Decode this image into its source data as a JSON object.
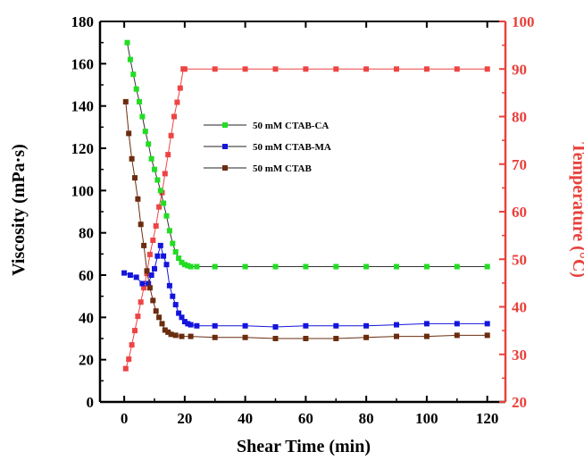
{
  "chart_data": {
    "type": "line",
    "xlabel": "Shear Time (min)",
    "ylabel": "Viscosity (mPa·s)",
    "y2label": "Temperature (°C)",
    "xlim": [
      -8,
      126
    ],
    "ylim": [
      0,
      180
    ],
    "y2lim": [
      20,
      100
    ],
    "xticks": [
      0,
      20,
      40,
      60,
      80,
      100,
      120
    ],
    "yticks": [
      0,
      20,
      40,
      60,
      80,
      100,
      120,
      140,
      160,
      180
    ],
    "y2ticks": [
      20,
      30,
      40,
      50,
      60,
      70,
      80,
      90,
      100
    ],
    "grid": false,
    "legend_position": "upper-center",
    "colors": {
      "right_axis": "#e8403a",
      "ca": "#22dd22",
      "ma": "#1414dc",
      "ctab": "#6b2c0f",
      "temp": "#ee4444"
    },
    "series": [
      {
        "name": "50 mM CTAB-CA",
        "axis": "left",
        "color_key": "ca",
        "x": [
          1,
          2,
          3,
          4,
          5,
          6,
          7,
          8,
          9,
          10,
          11,
          12,
          13,
          14,
          15,
          16,
          17,
          18,
          19,
          20,
          21,
          22,
          24,
          30,
          40,
          50,
          60,
          70,
          80,
          90,
          100,
          110,
          120
        ],
        "values": [
          170,
          162,
          155,
          148,
          142,
          135,
          128,
          122,
          115,
          110,
          105,
          100,
          94,
          88,
          81,
          75,
          71,
          68,
          66,
          65,
          64.5,
          64,
          64,
          64,
          64,
          64,
          64,
          64,
          64,
          64,
          64,
          64,
          64
        ]
      },
      {
        "name": "50 mM CTAB-MA",
        "axis": "left",
        "color_key": "ma",
        "x": [
          0,
          2,
          4,
          6,
          8,
          9,
          10,
          11,
          12,
          13,
          14,
          15,
          16,
          17,
          18,
          19,
          20,
          21,
          22,
          24,
          30,
          40,
          50,
          60,
          70,
          80,
          90,
          100,
          110,
          120
        ],
        "values": [
          61,
          60,
          59,
          56,
          56,
          60,
          63,
          69,
          74,
          69,
          65,
          55,
          50,
          46,
          42,
          40,
          38,
          37,
          36.5,
          36,
          36,
          36,
          35.5,
          36,
          36,
          36,
          36.5,
          37,
          37,
          37
        ]
      },
      {
        "name": "50 mM CTAB",
        "axis": "left",
        "color_key": "ctab",
        "x": [
          0.5,
          1.5,
          2.5,
          3.5,
          4.5,
          5.5,
          6.5,
          7.5,
          8.5,
          9.5,
          10.5,
          11.5,
          12.5,
          13.5,
          14.5,
          15.5,
          17,
          19,
          22,
          30,
          40,
          50,
          60,
          70,
          80,
          90,
          100,
          110,
          120
        ],
        "values": [
          142,
          127,
          115,
          106,
          96,
          84,
          74,
          62,
          54,
          48,
          43,
          40,
          37,
          34,
          33,
          32,
          31.5,
          31,
          31,
          30.5,
          30.5,
          30,
          30,
          30,
          30.5,
          31,
          31,
          31.5,
          31.5
        ]
      },
      {
        "name": "Temperature",
        "axis": "right",
        "color_key": "temp",
        "x": [
          0.5,
          1.5,
          2.5,
          3.5,
          4.5,
          5.5,
          6.5,
          7.5,
          8.5,
          9.5,
          10.5,
          11.5,
          12.5,
          13.5,
          14.5,
          15.5,
          16.5,
          17.5,
          18.5,
          19.5,
          20,
          30,
          40,
          50,
          60,
          70,
          80,
          90,
          100,
          110,
          120
        ],
        "values": [
          27,
          29,
          32,
          35,
          38,
          41,
          44,
          47,
          51,
          54,
          57,
          61,
          64,
          68,
          72,
          76,
          80,
          83,
          86,
          90,
          90,
          90,
          90,
          90,
          90,
          90,
          90,
          90,
          90,
          90,
          90
        ]
      }
    ]
  }
}
